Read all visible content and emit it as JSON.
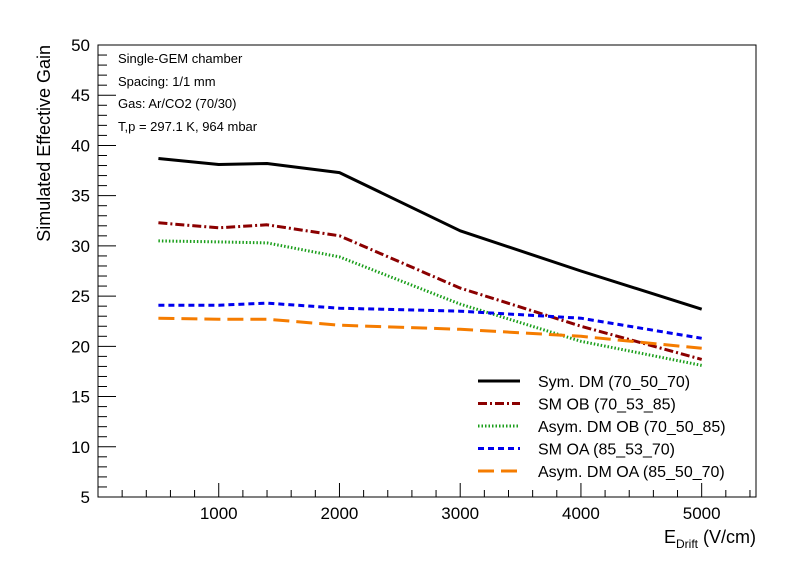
{
  "chart_data": {
    "type": "line",
    "title": "",
    "xlabel_main": "E",
    "xlabel_sub": "Drift",
    "xlabel_unit": " (V/cm)",
    "ylabel": "Simulated Effective Gain",
    "xlim": [
      0,
      5450
    ],
    "ylim": [
      5,
      50
    ],
    "xticks": [
      1000,
      2000,
      3000,
      4000,
      5000
    ],
    "yticks": [
      5,
      10,
      15,
      20,
      25,
      30,
      35,
      40,
      45,
      50
    ],
    "grid": false,
    "legend_position": "bottom-right",
    "annotations": [
      "Single-GEM chamber",
      "Spacing: 1/1 mm",
      "Gas: Ar/CO2 (70/30)",
      "T,p = 297.1 K, 964 mbar"
    ],
    "series": [
      {
        "name": "Sym. DM (70_50_70)",
        "color": "#000000",
        "dash": "solid",
        "x": [
          500,
          1000,
          1400,
          2000,
          3000,
          4000,
          5000
        ],
        "y": [
          38.7,
          38.1,
          38.2,
          37.3,
          31.5,
          27.5,
          23.7
        ]
      },
      {
        "name": "SM OB (70_53_85)",
        "color": "#8b0000",
        "dash": "dashdot",
        "x": [
          500,
          1000,
          1400,
          2000,
          3000,
          4000,
          5000
        ],
        "y": [
          32.3,
          31.8,
          32.1,
          31.0,
          25.8,
          22.0,
          18.7
        ]
      },
      {
        "name": "Asym. DM OB (70_50_85)",
        "color": "#1a9e1a",
        "dash": "dotted",
        "x": [
          500,
          1000,
          1400,
          2000,
          3000,
          4000,
          5000
        ],
        "y": [
          30.5,
          30.4,
          30.3,
          28.9,
          24.2,
          20.5,
          18.1
        ]
      },
      {
        "name": "SM OA (85_53_70)",
        "color": "#0000ee",
        "dash": "dashed",
        "x": [
          500,
          1000,
          1400,
          2000,
          3000,
          4000,
          5000
        ],
        "y": [
          24.1,
          24.1,
          24.3,
          23.8,
          23.5,
          22.8,
          20.8
        ]
      },
      {
        "name": "Asym. DM OA (85_50_70)",
        "color": "#f57c00",
        "dash": "longdash",
        "x": [
          500,
          1000,
          1400,
          2000,
          3000,
          4000,
          5000
        ],
        "y": [
          22.8,
          22.7,
          22.7,
          22.1,
          21.7,
          21.0,
          19.8
        ]
      }
    ]
  }
}
